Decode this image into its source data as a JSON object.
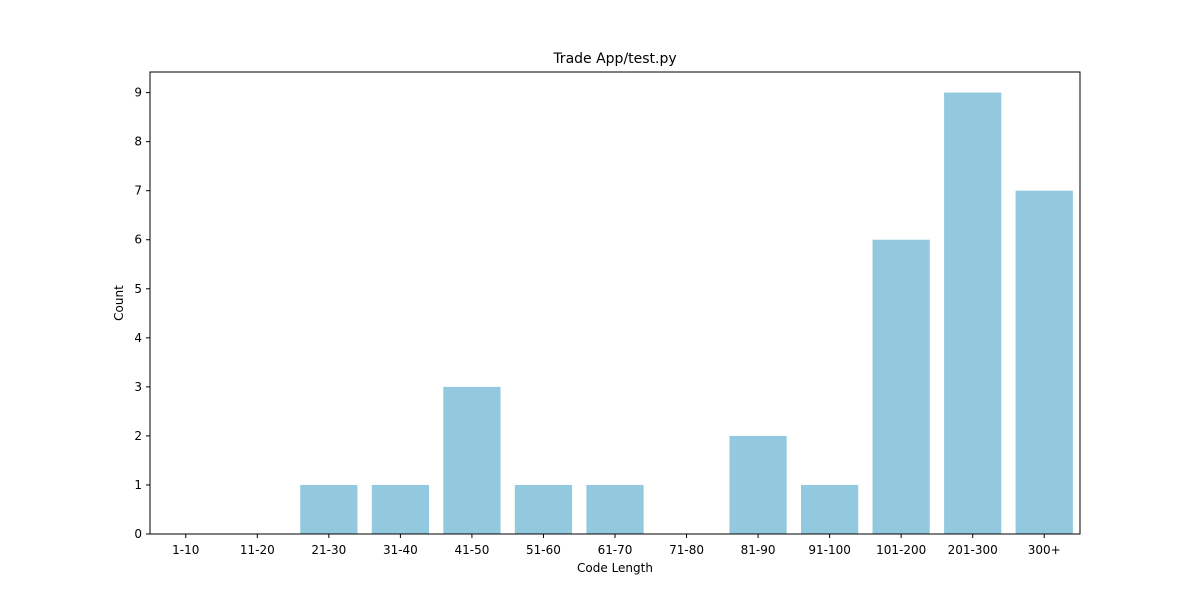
{
  "chart_data": {
    "type": "bar",
    "title": "Trade App/test.py",
    "xlabel": "Code Length",
    "ylabel": "Count",
    "categories": [
      "1-10",
      "11-20",
      "21-30",
      "31-40",
      "41-50",
      "51-60",
      "61-70",
      "71-80",
      "81-90",
      "91-100",
      "101-200",
      "201-300",
      "300+"
    ],
    "values": [
      0,
      0,
      1,
      1,
      3,
      1,
      1,
      0,
      2,
      1,
      6,
      9,
      7
    ],
    "ylim": [
      0,
      9.42
    ],
    "yticks": [
      0,
      1,
      2,
      3,
      4,
      5,
      6,
      7,
      8,
      9
    ],
    "grid": false,
    "bar_color": "#92c9df"
  }
}
